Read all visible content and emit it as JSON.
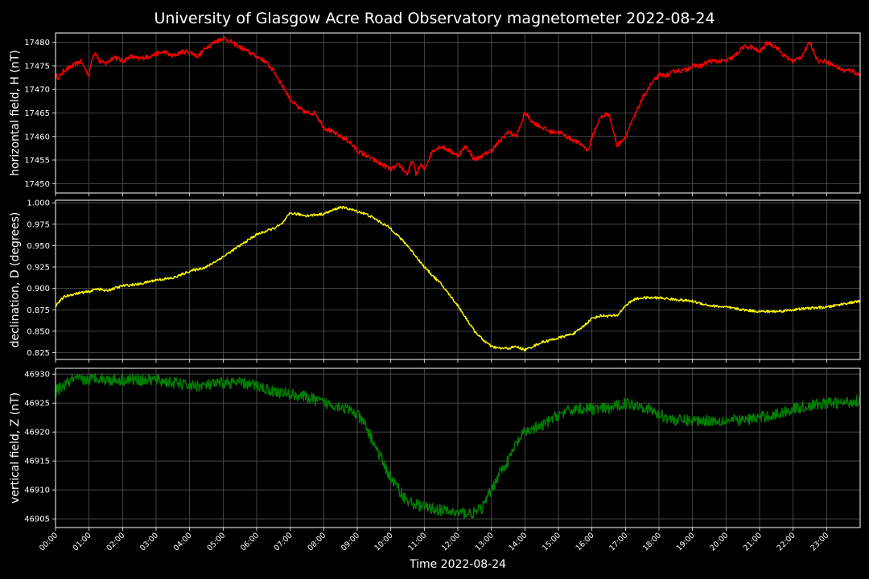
{
  "chart_data": {
    "type": "line",
    "title": "University of Glasgow Acre Road Observatory magnetometer 2022-08-24",
    "xlabel": "Time 2022-08-24",
    "x_ticks": [
      "00:00",
      "01:00",
      "02:00",
      "03:00",
      "04:00",
      "05:00",
      "06:00",
      "07:00",
      "08:00",
      "09:00",
      "10:00",
      "11:00",
      "12:00",
      "13:00",
      "14:00",
      "15:00",
      "16:00",
      "17:00",
      "18:00",
      "19:00",
      "20:00",
      "21:00",
      "22:00",
      "23:00"
    ],
    "xlim_hours": [
      0,
      24
    ],
    "grid": true,
    "panels": [
      {
        "id": "H",
        "ylabel": "horizontal field, H (nT)",
        "color": "#ff0000",
        "ylim": [
          17448,
          17482
        ],
        "yticks": [
          17450,
          17455,
          17460,
          17465,
          17470,
          17475,
          17480
        ],
        "ytick_labels": [
          "17450",
          "17455",
          "17460",
          "17465",
          "17470",
          "17475",
          "17480"
        ],
        "noise": 0.5,
        "series": [
          {
            "x": [
              0,
              0.1,
              0.25,
              0.5,
              0.75,
              1.0,
              1.1,
              1.2,
              1.3,
              1.5,
              1.75,
              2.0,
              2.25,
              2.5,
              2.75,
              3.0,
              3.25,
              3.5,
              3.75,
              4.0,
              4.25,
              4.5,
              4.75,
              5.0,
              5.25,
              5.5,
              5.75,
              6.0,
              6.25,
              6.5,
              6.75,
              7.0,
              7.25,
              7.5,
              7.75,
              8.0,
              8.25,
              8.5,
              8.75,
              9.0,
              9.25,
              9.5,
              9.75,
              10.0,
              10.25,
              10.5,
              10.65,
              10.75,
              10.9,
              11.0,
              11.25,
              11.5,
              11.75,
              12.0,
              12.25,
              12.5,
              12.75,
              13.0,
              13.25,
              13.5,
              13.75,
              14.0,
              14.25,
              14.5,
              14.75,
              15.0,
              15.25,
              15.5,
              15.75,
              15.9,
              16.0,
              16.25,
              16.5,
              16.75,
              17.0,
              17.25,
              17.5,
              17.75,
              18.0,
              18.25,
              18.5,
              18.75,
              19.0,
              19.25,
              19.5,
              19.75,
              20.0,
              20.25,
              20.5,
              20.75,
              21.0,
              21.25,
              21.5,
              21.75,
              22.0,
              22.25,
              22.5,
              22.75,
              23.0,
              23.25,
              23.5,
              23.75,
              24.0
            ],
            "y": [
              17473,
              17472.5,
              17474,
              17475,
              17476,
              17473,
              17477,
              17478,
              17476,
              17475.5,
              17477,
              17476,
              17477,
              17476.5,
              17477,
              17477.5,
              17478,
              17477,
              17478,
              17478,
              17477,
              17479,
              17480,
              17481,
              17480,
              17479,
              17478,
              17477,
              17476,
              17474,
              17471,
              17468,
              17466,
              17465,
              17465,
              17462,
              17461,
              17460,
              17459,
              17457,
              17456,
              17455,
              17454,
              17453,
              17454,
              17452,
              17455,
              17452,
              17454,
              17453,
              17457,
              17458,
              17457,
              17456,
              17458,
              17455,
              17456,
              17457,
              17459,
              17461,
              17460,
              17465,
              17463,
              17462,
              17461,
              17461,
              17460,
              17459,
              17458,
              17457,
              17460,
              17464,
              17465,
              17458,
              17460,
              17464,
              17468,
              17471,
              17473,
              17473,
              17474,
              17474,
              17475,
              17475,
              17476,
              17476,
              17476,
              17477,
              17479,
              17479,
              17478,
              17480,
              17479,
              17477,
              17476,
              17477,
              17480,
              17476,
              17476,
              17475,
              17474,
              17474,
              17473
            ]
          }
        ]
      },
      {
        "id": "D",
        "ylabel": "declination, D (degrees)",
        "color": "#ffff00",
        "ylim": [
          0.817,
          1.003
        ],
        "yticks": [
          0.825,
          0.85,
          0.875,
          0.9,
          0.925,
          0.95,
          0.975,
          1.0
        ],
        "ytick_labels": [
          "0.825",
          "0.850",
          "0.875",
          "0.900",
          "0.925",
          "0.950",
          "0.975",
          "1.000"
        ],
        "noise": 0.0015,
        "series": [
          {
            "x": [
              0,
              0.25,
              0.5,
              0.75,
              1.0,
              1.25,
              1.5,
              1.75,
              2.0,
              2.5,
              3.0,
              3.5,
              4.0,
              4.5,
              5.0,
              5.5,
              6.0,
              6.5,
              6.75,
              7.0,
              7.5,
              8.0,
              8.5,
              8.75,
              9.0,
              9.25,
              9.5,
              10.0,
              10.5,
              11.0,
              11.5,
              12.0,
              12.25,
              12.5,
              12.75,
              13.0,
              13.25,
              13.5,
              13.75,
              14.0,
              14.5,
              15.0,
              15.5,
              15.75,
              16.0,
              16.25,
              16.5,
              16.75,
              17.0,
              17.25,
              17.5,
              18.0,
              18.5,
              19.0,
              19.5,
              20.0,
              20.5,
              21.0,
              21.5,
              22.0,
              22.5,
              23.0,
              23.5,
              24.0
            ],
            "y": [
              0.88,
              0.89,
              0.893,
              0.895,
              0.896,
              0.9,
              0.897,
              0.9,
              0.903,
              0.905,
              0.91,
              0.912,
              0.92,
              0.925,
              0.937,
              0.95,
              0.963,
              0.97,
              0.975,
              0.988,
              0.985,
              0.987,
              0.995,
              0.993,
              0.99,
              0.987,
              0.982,
              0.97,
              0.95,
              0.925,
              0.905,
              0.88,
              0.865,
              0.85,
              0.84,
              0.832,
              0.83,
              0.83,
              0.832,
              0.828,
              0.837,
              0.842,
              0.848,
              0.856,
              0.865,
              0.868,
              0.868,
              0.868,
              0.88,
              0.887,
              0.889,
              0.889,
              0.887,
              0.885,
              0.88,
              0.878,
              0.875,
              0.873,
              0.873,
              0.875,
              0.877,
              0.878,
              0.882,
              0.885
            ]
          }
        ]
      },
      {
        "id": "Z",
        "ylabel": "vertical field, Z (nT)",
        "color": "#008000",
        "ylim": [
          46903.5,
          46931
        ],
        "yticks": [
          46905,
          46910,
          46915,
          46920,
          46925,
          46930
        ],
        "ytick_labels": [
          "46905",
          "46910",
          "46915",
          "46920",
          "46925",
          "46930"
        ],
        "noise": 1.0,
        "series": [
          {
            "x": [
              0,
              0.25,
              0.5,
              0.75,
              1.0,
              1.25,
              1.5,
              2.0,
              2.5,
              3.0,
              3.5,
              4.0,
              4.5,
              5.0,
              5.5,
              6.0,
              6.5,
              7.0,
              7.5,
              8.0,
              8.5,
              9.0,
              9.25,
              9.5,
              9.75,
              10.0,
              10.25,
              10.5,
              10.75,
              11.0,
              11.5,
              12.0,
              12.5,
              12.75,
              13.0,
              13.25,
              13.5,
              13.75,
              14.0,
              14.5,
              15.0,
              15.5,
              16.0,
              16.5,
              17.0,
              17.5,
              18.0,
              18.5,
              19.0,
              19.5,
              20.0,
              20.5,
              21.0,
              21.5,
              22.0,
              22.5,
              23.0,
              23.5,
              24.0
            ],
            "y": [
              46927,
              46928,
              46929,
              46929,
              46929,
              46929.5,
              46929,
              46929,
              46929,
              46929,
              46928.5,
              46928,
              46928,
              46928.5,
              46928.5,
              46928,
              46927,
              46926.5,
              46926,
              46925,
              46924.5,
              46923,
              46921,
              46918,
              46915,
              46912,
              46910,
              46908,
              46907.5,
              46907,
              46906.5,
              46906,
              46906,
              46907,
              46910,
              46913,
              46915,
              46918,
              46920,
              46921,
              46923,
              46924,
              46924,
              46924,
              46925,
              46924.5,
              46923,
              46922,
              46922,
              46922,
              46922,
              46922,
              46922.5,
              46923,
              46924,
              46924.5,
              46925,
              46925,
              46925.5
            ]
          }
        ]
      }
    ]
  }
}
